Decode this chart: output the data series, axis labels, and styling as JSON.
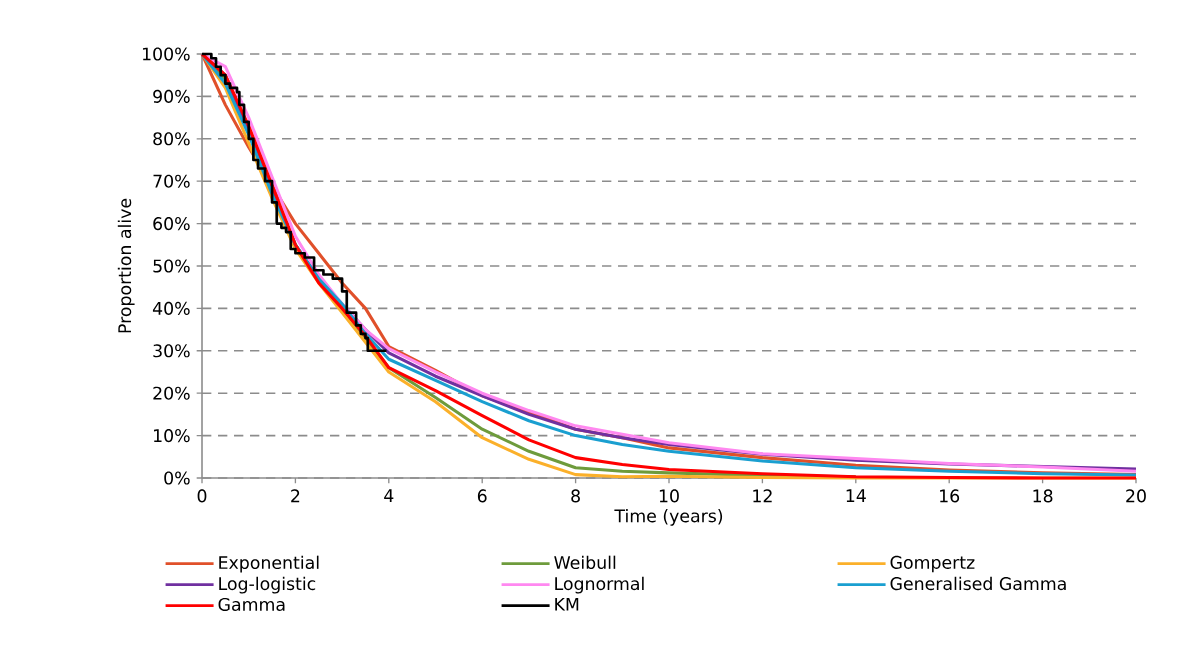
{
  "chart_data": {
    "type": "line",
    "xlabel": "Time (years)",
    "ylabel": "Proportion alive",
    "x": [
      0,
      0.5,
      1,
      1.5,
      2,
      2.5,
      3,
      3.5,
      4,
      5,
      6,
      7,
      8,
      9,
      10,
      12,
      14,
      16,
      18,
      20
    ],
    "series": [
      {
        "name": "Exponential",
        "color": "#e0502a",
        "values": [
          100,
          88,
          78,
          69,
          60,
          53,
          46,
          40,
          31,
          25.4,
          19.4,
          15.5,
          11.5,
          9.5,
          7.1,
          4.8,
          3,
          1.9,
          1.2,
          0.8
        ]
      },
      {
        "name": "Weibull",
        "color": "#6e9b3c",
        "values": [
          100,
          94,
          82,
          68,
          55,
          47,
          40,
          33,
          26,
          19,
          11.5,
          6.3,
          2.4,
          1.6,
          1.2,
          0.6,
          0.3,
          null,
          null,
          null
        ]
      },
      {
        "name": "Gompertz",
        "color": "#fbb02a",
        "values": [
          100,
          92,
          79,
          66,
          54,
          46,
          39,
          32,
          25,
          18,
          9.5,
          4.4,
          0.8,
          0.3,
          0.4,
          0.1,
          0,
          0,
          0,
          0
        ]
      },
      {
        "name": "Log-logistic",
        "color": "#7030a0",
        "values": [
          100,
          95,
          82,
          68,
          55,
          47,
          41,
          35,
          29.5,
          24,
          19.4,
          15,
          11.5,
          9.5,
          7.9,
          5.6,
          4.2,
          3.3,
          2.7,
          2.1
        ]
      },
      {
        "name": "Lognormal",
        "color": "#ff88f0",
        "values": [
          100,
          97,
          85,
          71,
          57,
          48,
          41,
          35,
          30.5,
          25,
          20,
          15.9,
          12.3,
          10.3,
          8.3,
          5.7,
          4.6,
          3.4,
          2.6,
          1.6
        ]
      },
      {
        "name": "Generalised Gamma",
        "color": "#1a9fd0",
        "values": [
          100,
          93,
          81,
          67,
          55,
          47,
          41,
          34,
          28,
          23,
          18,
          13.5,
          10,
          7.9,
          6.3,
          4,
          2.4,
          1.6,
          1,
          0.7
        ]
      },
      {
        "name": "Gamma",
        "color": "#ff0000",
        "values": [
          100,
          95,
          83,
          69,
          55,
          46,
          40,
          33.5,
          26,
          20.6,
          14.7,
          9,
          4.8,
          3.2,
          2,
          1,
          0.3,
          0.1,
          0,
          0
        ]
      },
      {
        "name": "KM",
        "type": "step",
        "color": "#000000",
        "x": [
          0,
          0.2,
          0.3,
          0.4,
          0.5,
          0.6,
          0.75,
          0.8,
          0.9,
          1.0,
          1.1,
          1.2,
          1.35,
          1.5,
          1.6,
          1.7,
          1.8,
          1.9,
          2.0,
          2.2,
          2.4,
          2.6,
          2.8,
          3.0,
          3.1,
          3.3,
          3.4,
          3.5,
          3.55,
          3.95
        ],
        "values": [
          100,
          99,
          97,
          95,
          93,
          92,
          91,
          88,
          84,
          80,
          75,
          73,
          70,
          65,
          60,
          59,
          58,
          54,
          53,
          52,
          49,
          48,
          47,
          44,
          39,
          36,
          34,
          33,
          30,
          30
        ]
      }
    ],
    "xlim": [
      0,
      20
    ],
    "xticks": [
      0,
      2,
      4,
      6,
      8,
      10,
      12,
      14,
      16,
      18,
      20
    ],
    "ylim": [
      0,
      100
    ],
    "yticks": [
      {
        "value": 0,
        "label": "0%"
      },
      {
        "value": 10,
        "label": "10%"
      },
      {
        "value": 20,
        "label": "20%"
      },
      {
        "value": 30,
        "label": "30%"
      },
      {
        "value": 40,
        "label": "40%"
      },
      {
        "value": 50,
        "label": "50%"
      },
      {
        "value": 60,
        "label": "60%"
      },
      {
        "value": 70,
        "label": "70%"
      },
      {
        "value": 80,
        "label": "80%"
      },
      {
        "value": 90,
        "label": "90%"
      },
      {
        "value": 100,
        "label": "100%"
      }
    ],
    "grid": "y",
    "legend": "bottom"
  }
}
